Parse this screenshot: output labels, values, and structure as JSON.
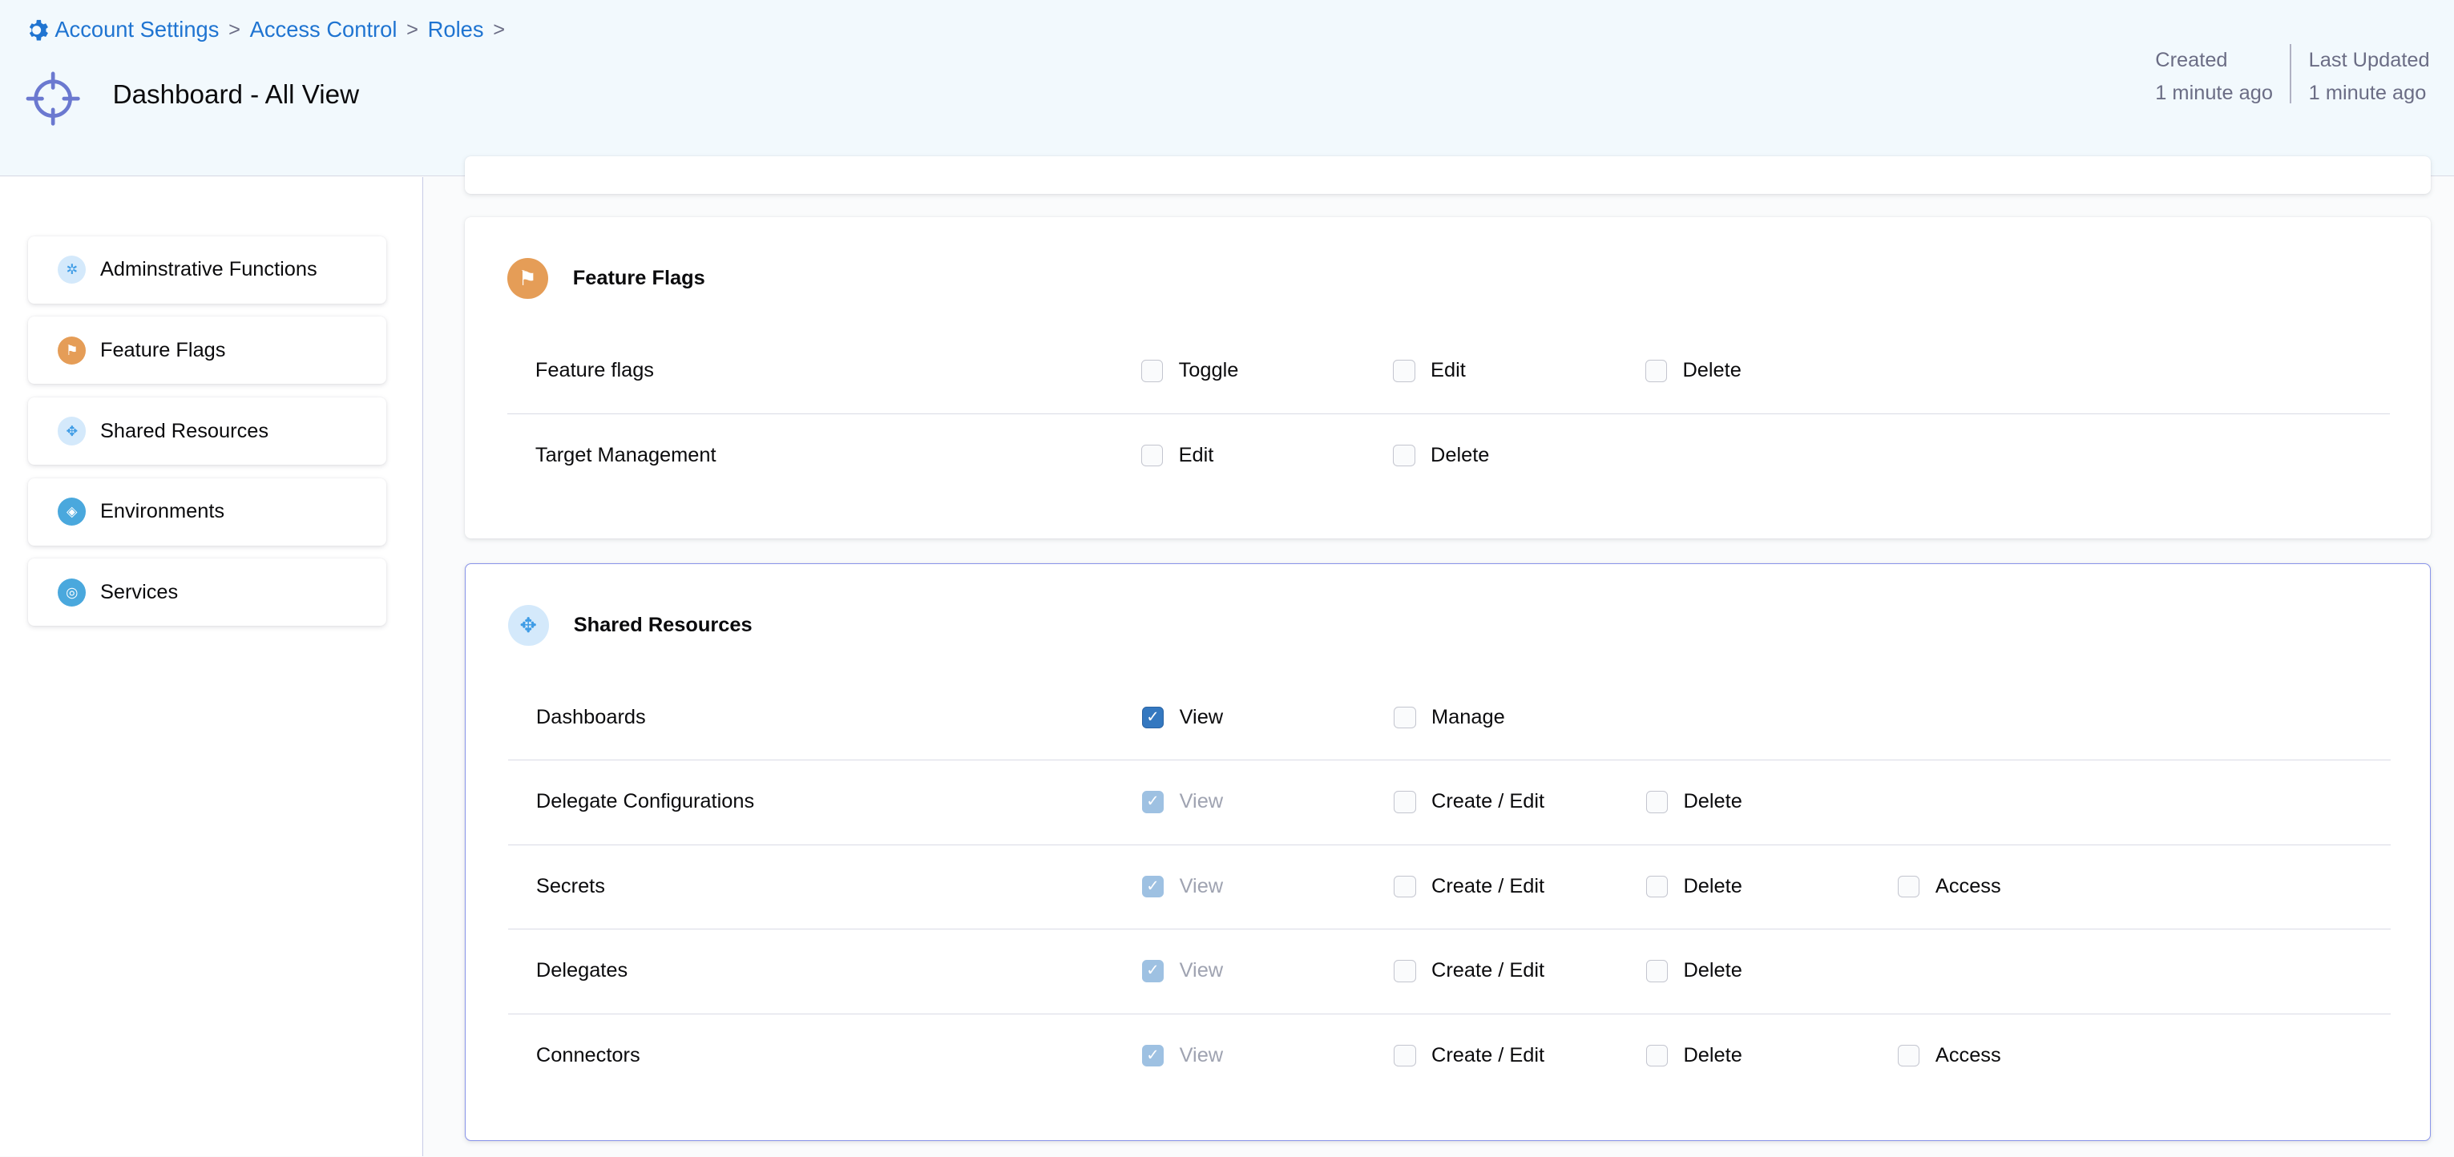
{
  "breadcrumb": [
    {
      "label": "Account Settings"
    },
    {
      "label": "Access Control"
    },
    {
      "label": "Roles"
    }
  ],
  "page": {
    "title": "Dashboard - All View",
    "icon": "crosshair-icon"
  },
  "meta": {
    "created_label": "Created",
    "created_value": "1 minute ago",
    "updated_label": "Last Updated",
    "updated_value": "1 minute ago"
  },
  "sidebar": {
    "items": [
      {
        "label": "Adminstrative Functions",
        "icon": "gear-icon",
        "color": "#d4e9fb",
        "fg": "#3e9ce6"
      },
      {
        "label": "Feature Flags",
        "icon": "flag-icon",
        "color": "#e59d57",
        "fg": "#fff"
      },
      {
        "label": "Shared Resources",
        "icon": "shared-icon",
        "color": "#d4e9fb",
        "fg": "#3e9ce6"
      },
      {
        "label": "Environments",
        "icon": "environment-icon",
        "color": "#4aa8dd",
        "fg": "#fff"
      },
      {
        "label": "Services",
        "icon": "service-icon",
        "color": "#4aa8dd",
        "fg": "#fff"
      }
    ]
  },
  "cards": [
    {
      "title": "Feature Flags",
      "icon": "flag-icon",
      "rows": [
        {
          "label": "Feature flags",
          "perms": [
            {
              "label": "Toggle",
              "state": "unchecked"
            },
            {
              "label": "Edit",
              "state": "unchecked"
            },
            {
              "label": "Delete",
              "state": "unchecked"
            }
          ]
        },
        {
          "label": "Target Management",
          "perms": [
            {
              "label": "Edit",
              "state": "unchecked"
            },
            {
              "label": "Delete",
              "state": "unchecked"
            }
          ]
        }
      ]
    },
    {
      "title": "Shared Resources",
      "icon": "shared-icon",
      "selected": true,
      "rows": [
        {
          "label": "Dashboards",
          "perms": [
            {
              "label": "View",
              "state": "checked"
            },
            {
              "label": "Manage",
              "state": "unchecked"
            }
          ]
        },
        {
          "label": "Delegate Configurations",
          "perms": [
            {
              "label": "View",
              "state": "checked-disabled"
            },
            {
              "label": "Create / Edit",
              "state": "unchecked"
            },
            {
              "label": "Delete",
              "state": "unchecked"
            }
          ]
        },
        {
          "label": "Secrets",
          "perms": [
            {
              "label": "View",
              "state": "checked-disabled"
            },
            {
              "label": "Create / Edit",
              "state": "unchecked"
            },
            {
              "label": "Delete",
              "state": "unchecked"
            },
            {
              "label": "Access",
              "state": "unchecked"
            }
          ]
        },
        {
          "label": "Delegates",
          "perms": [
            {
              "label": "View",
              "state": "checked-disabled"
            },
            {
              "label": "Create / Edit",
              "state": "unchecked"
            },
            {
              "label": "Delete",
              "state": "unchecked"
            }
          ]
        },
        {
          "label": "Connectors",
          "perms": [
            {
              "label": "View",
              "state": "checked-disabled"
            },
            {
              "label": "Create / Edit",
              "state": "unchecked"
            },
            {
              "label": "Delete",
              "state": "unchecked"
            },
            {
              "label": "Access",
              "state": "unchecked"
            }
          ]
        }
      ]
    }
  ],
  "colors": {
    "accent": "#1f74d1",
    "checked": "#3478c0",
    "selected_border": "#8a95ea"
  }
}
